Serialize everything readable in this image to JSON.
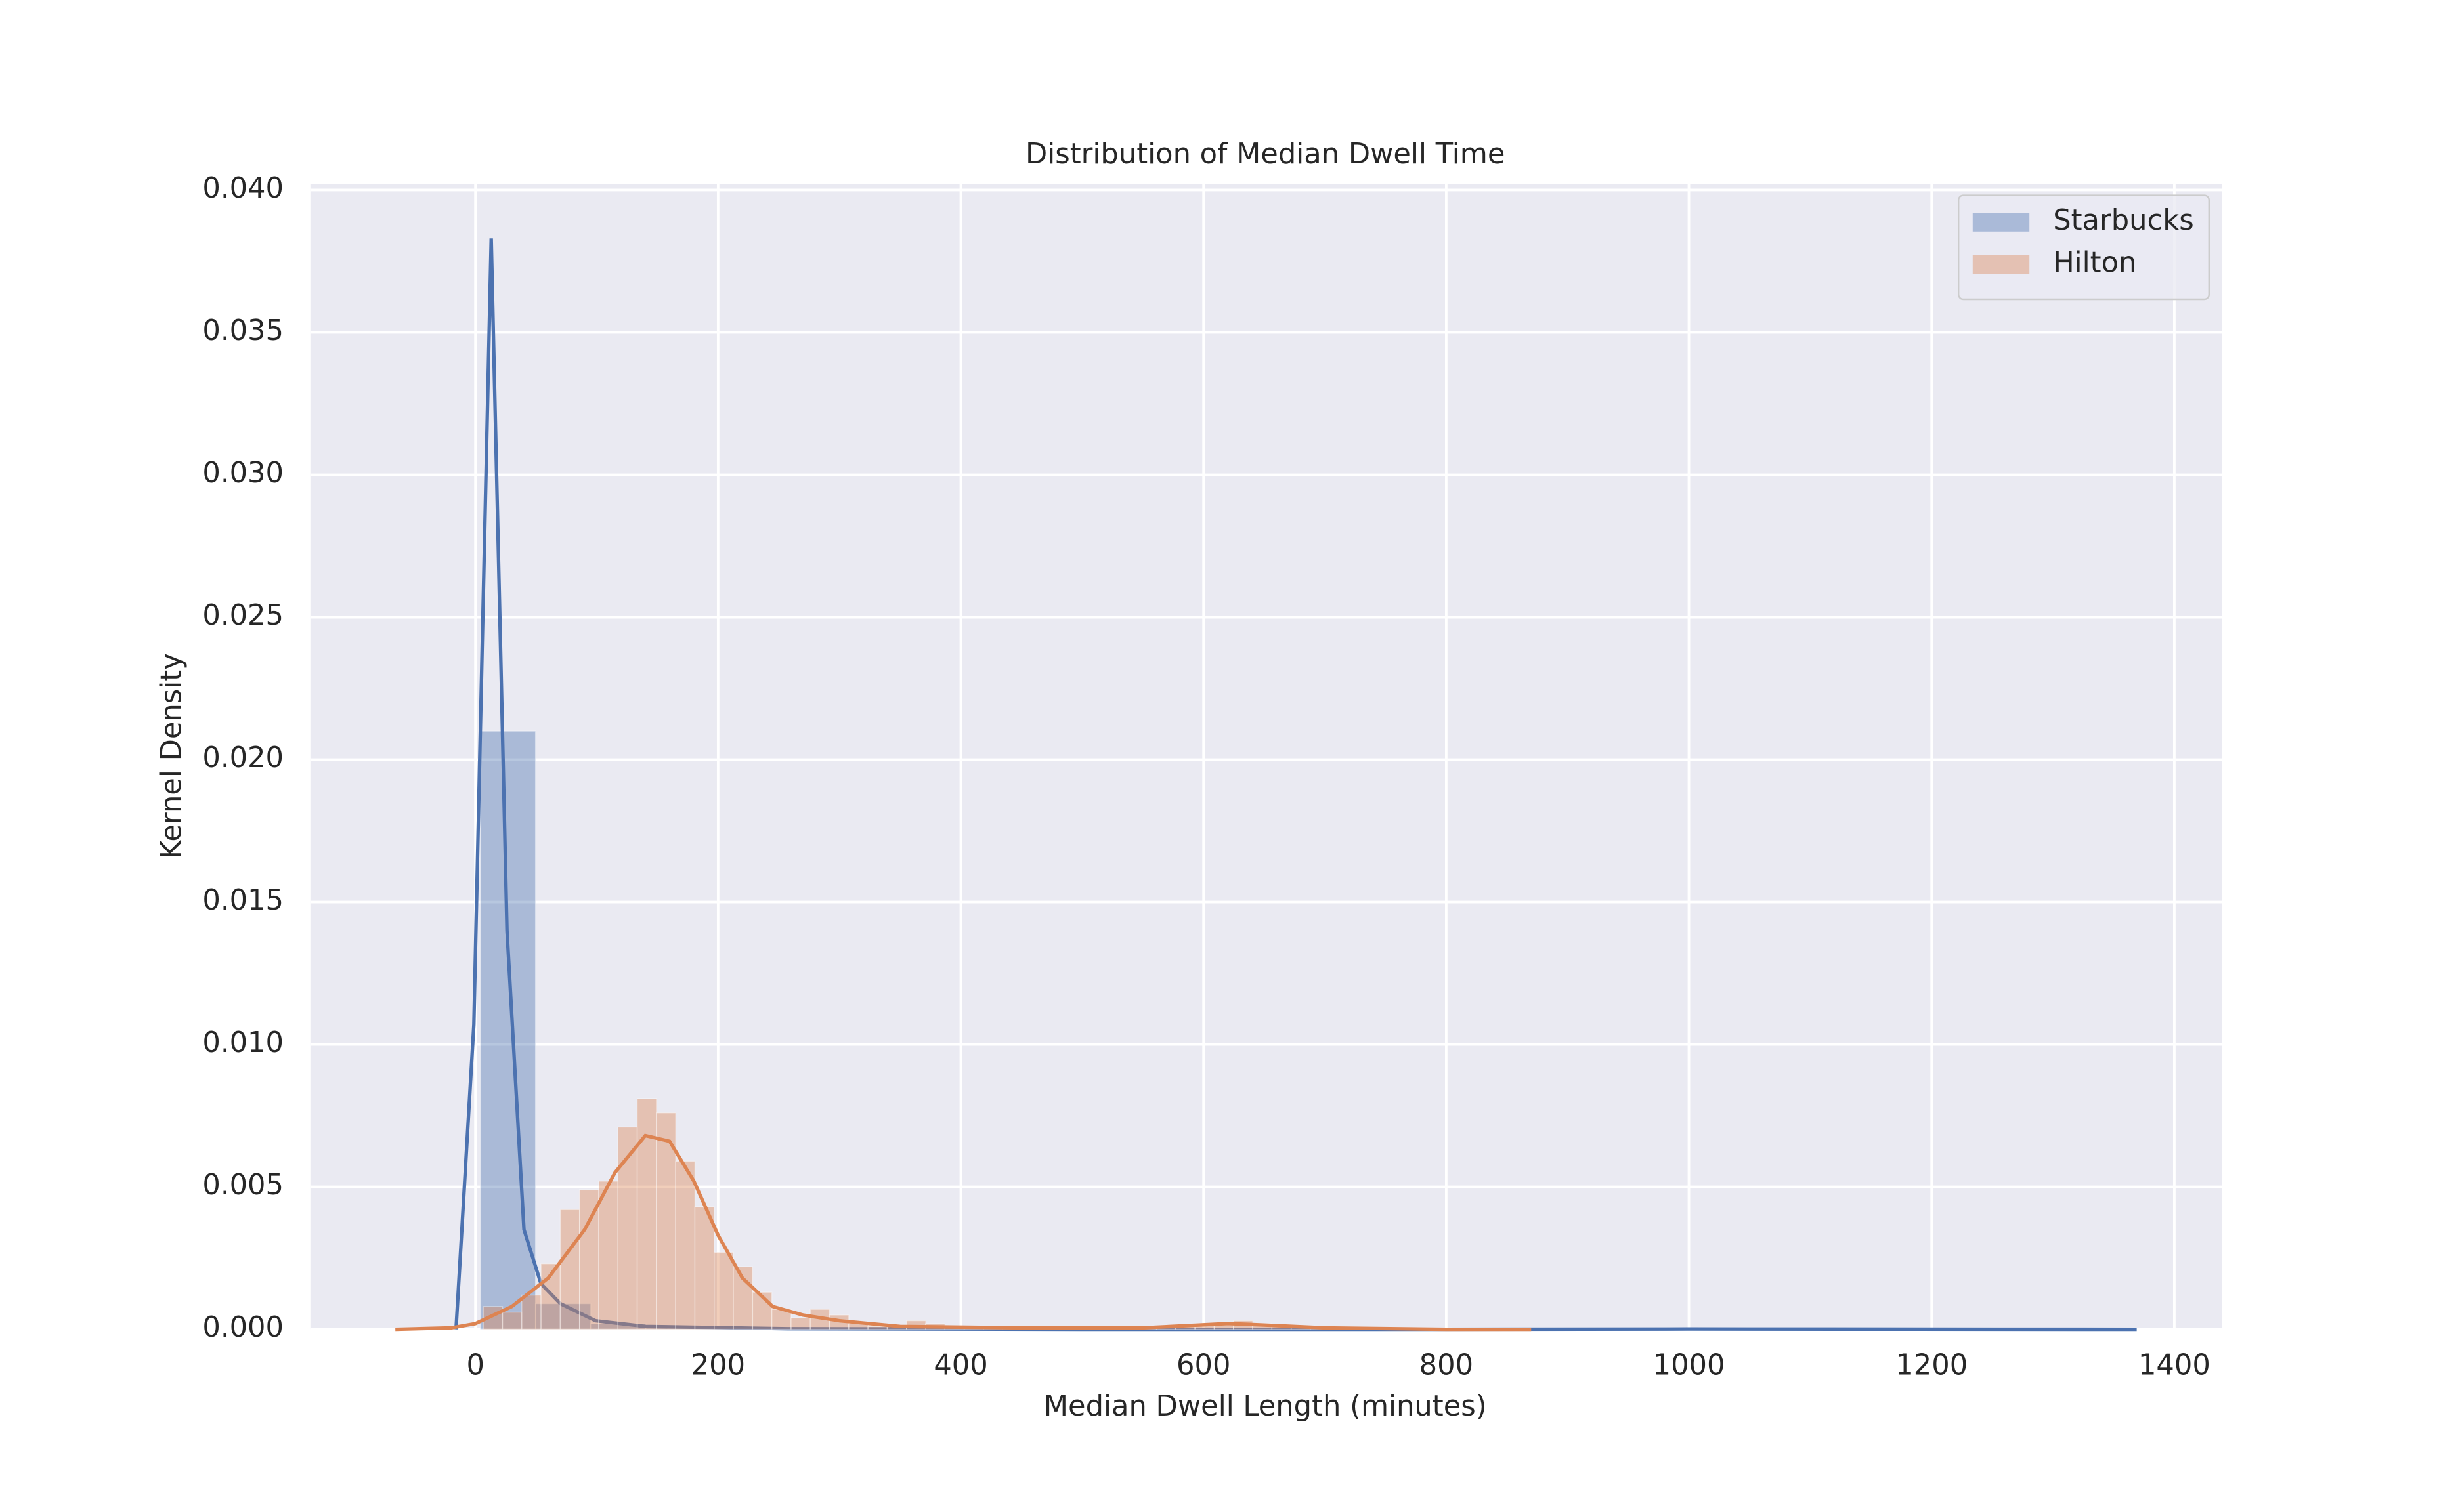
{
  "chart_data": {
    "type": "histogram",
    "title": "Distribution of Median Dwell Time",
    "x_label": "Median Dwell Length (minutes)",
    "y_label": "Kernel Density",
    "xlim": [
      -136,
      1439
    ],
    "ylim": [
      0,
      0.0402
    ],
    "xticks": [
      0,
      200,
      400,
      600,
      800,
      1000,
      1200,
      1400
    ],
    "yticks": [
      {
        "value": 0,
        "label": "0.000"
      },
      0.005,
      {
        "value": 0.01,
        "label": "0.010"
      },
      0.015,
      {
        "value": 0.02,
        "label": "0.020"
      },
      0.025,
      {
        "value": 0.03,
        "label": "0.030"
      },
      0.035,
      {
        "value": 0.04,
        "label": "0.040"
      }
    ],
    "grid": true,
    "legend": "upper right",
    "series": [
      {
        "name": "Starbucks",
        "color": "#4c72b0",
        "bins": [
          4,
          49.5,
          95,
          140.5,
          186,
          231.5,
          277,
          322.5,
          368,
          413.5,
          459,
          504.5,
          550,
          595.5,
          641,
          686.5,
          732,
          777.5,
          823,
          868.5,
          914,
          959.5,
          1005,
          1050.5,
          1096,
          1141.5,
          1187,
          1232.5,
          1278,
          1323.5,
          1369
        ],
        "values": [
          0.021,
          0.0009,
          0.0002,
          0.0001,
          5e-05,
          3e-05,
          2e-05,
          2e-05,
          1e-05,
          0,
          0,
          0,
          0,
          0,
          0,
          0,
          0,
          0,
          0,
          1e-05,
          1e-05,
          1e-05,
          1e-05,
          1e-05,
          1e-05,
          1e-05,
          1e-05,
          1e-05,
          1e-05,
          1e-05
        ],
        "kde_x": [
          -16,
          -1.3,
          13,
          26,
          40,
          54,
          70,
          99,
          140,
          257,
          500,
          800,
          1000,
          1369
        ],
        "kde_y": [
          0,
          0.0107,
          0.0383,
          0.014,
          0.0035,
          0.0016,
          0.0009,
          0.0003,
          0.0001,
          2e-05,
          0,
          0,
          1e-05,
          0
        ]
      },
      {
        "name": "Hilton",
        "color": "#dd8452",
        "bins": [
          6.5,
          22.35,
          38.2,
          54.05,
          69.9,
          85.75,
          101.6,
          117.45,
          133.3,
          149.15,
          165,
          180.85,
          196.7,
          212.55,
          228.4,
          244.25,
          260.1,
          275.95,
          291.8,
          307.65,
          323.5,
          339.35,
          355.2,
          371.05,
          386.9,
          402.75,
          418.6,
          434.45,
          450.3,
          466.15,
          482,
          497.85,
          513.7,
          529.55,
          545.4,
          561.25,
          577.1,
          592.95,
          608.8,
          624.65,
          640.5,
          656.35,
          672.2,
          688.05,
          703.9,
          719.75,
          735.6
        ],
        "values": [
          0.0008,
          0.0006,
          0.0012,
          0.0023,
          0.0042,
          0.0049,
          0.0052,
          0.0071,
          0.0081,
          0.0076,
          0.0059,
          0.0043,
          0.0027,
          0.0022,
          0.0013,
          0.0007,
          0.0004,
          0.0007,
          0.0005,
          0.0002,
          0.0001,
          0.0001,
          0.0003,
          0.0002,
          0.0001,
          0.0001,
          0.0001,
          0.0001,
          5e-05,
          5e-05,
          5e-05,
          5e-05,
          5e-05,
          5e-05,
          5e-05,
          0.0001,
          0.0001,
          0.0002,
          0.0002,
          0.0003,
          0.0002,
          0.0001,
          0.0001,
          5e-05,
          5e-05,
          5e-05
        ],
        "kde_x": [
          -66,
          -20,
          0,
          30,
          60,
          90,
          115,
          140,
          160,
          180,
          200,
          220,
          245,
          270,
          300,
          350,
          450,
          550,
          620,
          650,
          700,
          800,
          870
        ],
        "kde_y": [
          0,
          5e-05,
          0.0002,
          0.0008,
          0.0018,
          0.0035,
          0.0055,
          0.0068,
          0.0066,
          0.0052,
          0.0033,
          0.0018,
          0.0008,
          0.0005,
          0.0003,
          0.0001,
          5e-05,
          5e-05,
          0.0002,
          0.00015,
          5e-05,
          0,
          0
        ]
      }
    ]
  }
}
